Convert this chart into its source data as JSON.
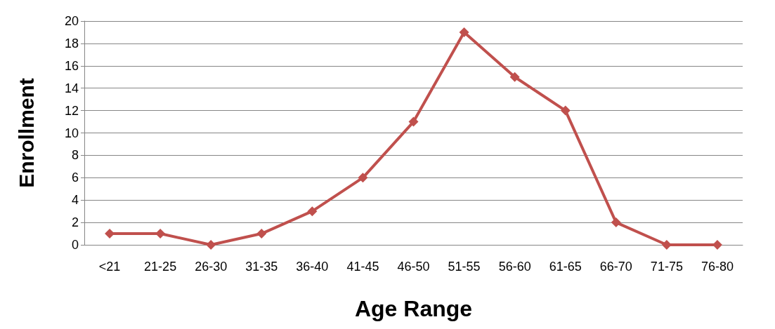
{
  "chart_data": {
    "type": "line",
    "xlabel": "Age Range",
    "ylabel": "Enrollment",
    "categories": [
      "<21",
      "21-25",
      "26-30",
      "31-35",
      "36-40",
      "41-45",
      "46-50",
      "51-55",
      "56-60",
      "61-65",
      "66-70",
      "71-75",
      "76-80"
    ],
    "series": [
      {
        "color": "#c0504d",
        "values": [
          1,
          1,
          0,
          1,
          3,
          6,
          11,
          19,
          15,
          12,
          2,
          0,
          0
        ]
      }
    ],
    "ylim": [
      0,
      20
    ],
    "yticks": [
      0,
      2,
      4,
      6,
      8,
      10,
      12,
      14,
      16,
      18,
      20
    ],
    "grid": "y",
    "marker": "diamond",
    "line_style": "solid"
  }
}
